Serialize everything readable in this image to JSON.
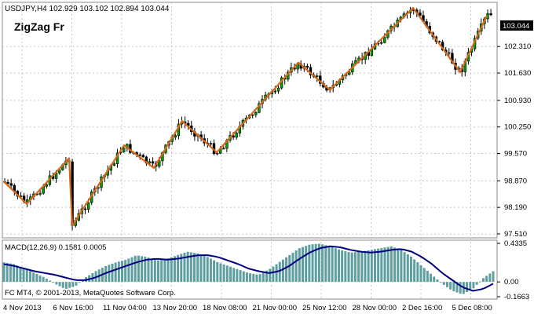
{
  "header": {
    "symbol_line": "USDJPY,H4  102.929 103.102 102.894 103.044",
    "indicator_name": "ZigZag Fr"
  },
  "price_axis": {
    "ticks": [
      "103.044",
      "102.310",
      "101.630",
      "100.930",
      "100.250",
      "99.570",
      "98.870",
      "98.190",
      "97.510"
    ],
    "current_price": "103.044",
    "range": [
      97.51,
      103.3
    ]
  },
  "macd": {
    "label": "MACD(12,26,9) 0.1581 0.0005",
    "ticks": [
      "0.4335",
      "0.00",
      "-0.1663"
    ],
    "range": [
      -0.1663,
      0.4335
    ]
  },
  "footer": {
    "copyright": "FC MT4, © 2001-2013, MetaQuotes Software Corp."
  },
  "time_axis": {
    "labels": [
      "4 Nov 2013",
      "6 Nov 16:00",
      "11 Nov 04:00",
      "13 Nov 20:00",
      "18 Nov 08:00",
      "21 Nov 00:00",
      "25 Nov 12:00",
      "28 Nov 00:00",
      "2 Dec 16:00",
      "5 Dec 08:00"
    ]
  },
  "colors": {
    "background": "#ffffff",
    "grid": "#c8c8c8",
    "bull_candle": "#00a000",
    "bear_candle": "#000000",
    "zigzag": "#d2691e",
    "macd_hist": "#5f9ea0",
    "macd_signal": "#000080",
    "price_tag_bg": "#000000",
    "price_tag_text": "#ffffff"
  },
  "chart_data": {
    "type": "line",
    "title": "USDJPY,H4",
    "zigzag_points": [
      {
        "x": "4 Nov 2013",
        "y": 98.85
      },
      {
        "x": "5 Nov",
        "y": 98.28
      },
      {
        "x": "6 Nov",
        "y": 99.45
      },
      {
        "x": "6 Nov 16:00",
        "y": 97.72
      },
      {
        "x": "8 Nov",
        "y": 99.78
      },
      {
        "x": "11 Nov",
        "y": 99.2
      },
      {
        "x": "13 Nov",
        "y": 100.4
      },
      {
        "x": "14 Nov",
        "y": 99.6
      },
      {
        "x": "20 Nov",
        "y": 101.9
      },
      {
        "x": "22 Nov",
        "y": 101.2
      },
      {
        "x": "2 Dec",
        "y": 103.3
      },
      {
        "x": "4 Dec",
        "y": 101.65
      },
      {
        "x": "5 Dec 08:00",
        "y": 103.1
      }
    ],
    "macd_histogram_approx": [
      0.22,
      0.2,
      0.15,
      0.1,
      0.05,
      -0.02,
      -0.08,
      -0.05,
      0.05,
      0.12,
      0.18,
      0.22,
      0.25,
      0.3,
      0.28,
      0.24,
      0.26,
      0.3,
      0.34,
      0.32,
      0.28,
      0.22,
      0.18,
      0.14,
      0.1,
      0.08,
      0.14,
      0.22,
      0.3,
      0.38,
      0.42,
      0.43,
      0.4,
      0.36,
      0.33,
      0.34,
      0.36,
      0.38,
      0.4,
      0.36,
      0.28,
      0.18,
      0.08,
      -0.02,
      -0.1,
      -0.14,
      -0.08,
      0.04,
      0.12
    ],
    "macd_signal_approx": [
      0.2,
      0.18,
      0.15,
      0.12,
      0.1,
      0.08,
      0.05,
      0.02,
      0.02,
      0.05,
      0.1,
      0.14,
      0.18,
      0.22,
      0.25,
      0.26,
      0.25,
      0.26,
      0.28,
      0.3,
      0.3,
      0.28,
      0.24,
      0.2,
      0.15,
      0.12,
      0.1,
      0.12,
      0.18,
      0.26,
      0.33,
      0.38,
      0.4,
      0.39,
      0.36,
      0.34,
      0.33,
      0.34,
      0.36,
      0.37,
      0.34,
      0.28,
      0.2,
      0.1,
      0.02,
      -0.06,
      -0.1,
      -0.08,
      -0.02
    ],
    "ylim": [
      97.51,
      103.3
    ]
  }
}
